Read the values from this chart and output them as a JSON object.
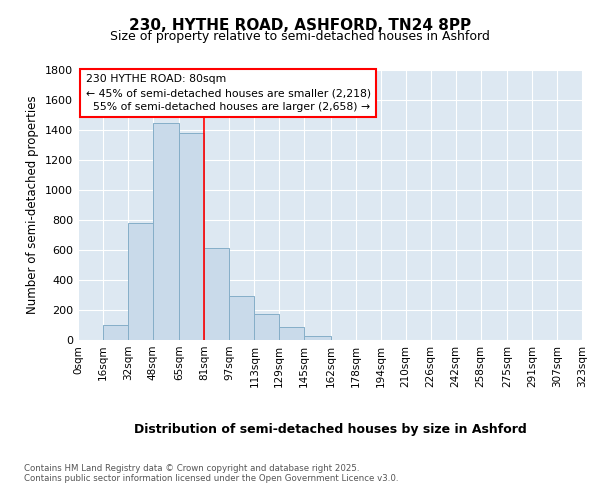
{
  "title_line1": "230, HYTHE ROAD, ASHFORD, TN24 8PP",
  "title_line2": "Size of property relative to semi-detached houses in Ashford",
  "xlabel": "Distribution of semi-detached houses by size in Ashford",
  "ylabel": "Number of semi-detached properties",
  "bin_labels": [
    "0sqm",
    "16sqm",
    "32sqm",
    "48sqm",
    "65sqm",
    "81sqm",
    "97sqm",
    "113sqm",
    "129sqm",
    "145sqm",
    "162sqm",
    "178sqm",
    "194sqm",
    "210sqm",
    "226sqm",
    "242sqm",
    "258sqm",
    "275sqm",
    "291sqm",
    "307sqm",
    "323sqm"
  ],
  "bar_heights": [
    0,
    100,
    780,
    1450,
    1380,
    615,
    295,
    175,
    85,
    30,
    0,
    0,
    0,
    0,
    0,
    0,
    0,
    0,
    0,
    0
  ],
  "bar_color": "#c9daea",
  "bar_edgecolor": "#85aec8",
  "subject_sqm": 80,
  "pct_smaller": 45,
  "pct_larger": 55,
  "n_smaller": 2218,
  "n_larger": 2658,
  "ylim": [
    0,
    1800
  ],
  "yticks": [
    0,
    200,
    400,
    600,
    800,
    1000,
    1200,
    1400,
    1600,
    1800
  ],
  "footer_line1": "Contains HM Land Registry data © Crown copyright and database right 2025.",
  "footer_line2": "Contains public sector information licensed under the Open Government Licence v3.0.",
  "bg_color": "#dde8f2",
  "vline_x": 81
}
